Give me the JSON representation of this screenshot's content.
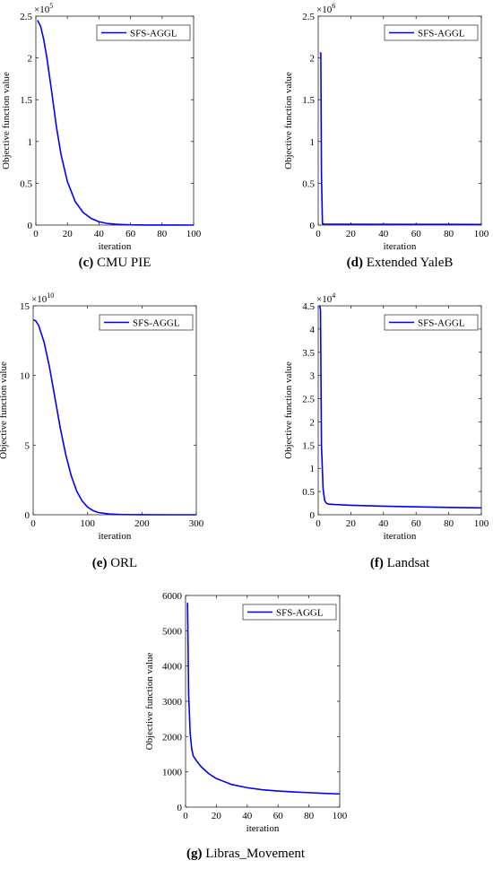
{
  "chart_data": [
    {
      "type": "line",
      "subplot_label": "(c)",
      "caption": "CMU PIE",
      "ylabel": "Objective function value",
      "xlabel": "iteration",
      "xlim": [
        0,
        100
      ],
      "ylim": [
        0,
        250000
      ],
      "xticks": [
        "0",
        "20",
        "40",
        "60",
        "80",
        "100"
      ],
      "xtick_values": [
        0,
        20,
        40,
        60,
        80,
        100
      ],
      "yticks": [
        "0",
        "0.5",
        "1",
        "1.5",
        "2",
        "2.5"
      ],
      "ytick_values": [
        0,
        50000,
        100000,
        150000,
        200000,
        250000
      ],
      "exponent_label": "×10",
      "exponent_power": "5",
      "legend": "SFS-AGGL",
      "legend_position": "top-right",
      "grid": false,
      "color": "#0000ff",
      "series": [
        {
          "name": "SFS-AGGL",
          "x": [
            1,
            3,
            5,
            7,
            10,
            13,
            16,
            20,
            25,
            30,
            35,
            40,
            45,
            50,
            55,
            60,
            70,
            80,
            90,
            100
          ],
          "y": [
            245000,
            238000,
            222000,
            200000,
            160000,
            118000,
            84000,
            52000,
            28000,
            15000,
            8000,
            4000,
            2000,
            1100,
            600,
            300,
            120,
            60,
            30,
            15
          ]
        }
      ]
    },
    {
      "type": "line",
      "subplot_label": "(d)",
      "caption": "Extended YaleB",
      "ylabel": "Objective function value",
      "xlabel": "iteration",
      "xlim": [
        0,
        100
      ],
      "ylim": [
        0,
        2500000
      ],
      "xticks": [
        "0",
        "20",
        "40",
        "60",
        "80",
        "100"
      ],
      "xtick_values": [
        0,
        20,
        40,
        60,
        80,
        100
      ],
      "yticks": [
        "0",
        "0.5",
        "1",
        "1.5",
        "2",
        "2.5"
      ],
      "ytick_values": [
        0,
        500000,
        1000000,
        1500000,
        2000000,
        2500000
      ],
      "exponent_label": "×10",
      "exponent_power": "6",
      "legend": "SFS-AGGL",
      "legend_position": "top-right",
      "grid": false,
      "color": "#0000ff",
      "series": [
        {
          "name": "SFS-AGGL",
          "x": [
            1,
            1.6,
            2,
            2.6,
            4,
            10,
            50,
            100
          ],
          "y": [
            2060000,
            2060000,
            600000,
            15000,
            12000,
            10000,
            9000,
            8000
          ]
        }
      ]
    },
    {
      "type": "line",
      "subplot_label": "(e)",
      "caption": "ORL",
      "ylabel": "Objective function value",
      "xlabel": "iteration",
      "xlim": [
        0,
        300
      ],
      "ylim": [
        0,
        150000000000
      ],
      "xticks": [
        "0",
        "100",
        "200",
        "300"
      ],
      "xtick_values": [
        0,
        100,
        200,
        300
      ],
      "yticks": [
        "0",
        "5",
        "10",
        "15"
      ],
      "ytick_values": [
        0,
        50000000000,
        100000000000,
        150000000000
      ],
      "exponent_label": "×10",
      "exponent_power": "10",
      "legend": "SFS-AGGL",
      "legend_position": "top-right",
      "grid": false,
      "color": "#0000ff",
      "series": [
        {
          "name": "SFS-AGGL",
          "x": [
            1,
            5,
            10,
            20,
            30,
            40,
            50,
            60,
            70,
            80,
            90,
            100,
            110,
            120,
            140,
            160,
            180,
            200,
            250,
            300
          ],
          "y": [
            140000000000,
            139000000000,
            136000000000,
            124000000000,
            106000000000,
            84000000000,
            62000000000,
            43000000000,
            28000000000,
            17000000000,
            10000000000,
            5500000000,
            3000000000,
            1600000000,
            500000000,
            200000000,
            80000000,
            30000000,
            5000000,
            1000000
          ]
        }
      ]
    },
    {
      "type": "line",
      "subplot_label": "(f)",
      "caption": "Landsat",
      "ylabel": "Objective function value",
      "xlabel": "iteration",
      "xlim": [
        0,
        100
      ],
      "ylim": [
        0,
        45000
      ],
      "xticks": [
        "0",
        "20",
        "40",
        "60",
        "80",
        "100"
      ],
      "xtick_values": [
        0,
        20,
        40,
        60,
        80,
        100
      ],
      "yticks": [
        "0",
        "0.5",
        "1",
        "1.5",
        "2",
        "2.5",
        "3",
        "3.5",
        "4",
        "4.5"
      ],
      "ytick_values": [
        0,
        5000,
        10000,
        15000,
        20000,
        25000,
        30000,
        35000,
        40000,
        45000
      ],
      "exponent_label": "×10",
      "exponent_power": "4",
      "legend": "SFS-AGGL",
      "legend_position": "top-right",
      "grid": false,
      "color": "#0000ff",
      "series": [
        {
          "name": "SFS-AGGL",
          "x": [
            1,
            1.4,
            2,
            3,
            4,
            5,
            6,
            10,
            20,
            40,
            60,
            80,
            100
          ],
          "y": [
            45000,
            44000,
            15000,
            5500,
            3000,
            2500,
            2300,
            2200,
            2050,
            1850,
            1700,
            1580,
            1480
          ]
        }
      ]
    },
    {
      "type": "line",
      "subplot_label": "(g)",
      "caption": "Libras_Movement",
      "ylabel": "Objective function value",
      "xlabel": "iteration",
      "xlim": [
        0,
        100
      ],
      "ylim": [
        0,
        6000
      ],
      "xticks": [
        "0",
        "20",
        "40",
        "60",
        "80",
        "100"
      ],
      "xtick_values": [
        0,
        20,
        40,
        60,
        80,
        100
      ],
      "yticks": [
        "0",
        "1000",
        "2000",
        "3000",
        "4000",
        "5000",
        "6000"
      ],
      "ytick_values": [
        0,
        1000,
        2000,
        3000,
        4000,
        5000,
        6000
      ],
      "legend": "SFS-AGGL",
      "legend_position": "top-right",
      "grid": false,
      "color": "#0000ff",
      "series": [
        {
          "name": "SFS-AGGL",
          "x": [
            1,
            1.3,
            2,
            3,
            4,
            5,
            7,
            10,
            15,
            20,
            30,
            40,
            50,
            60,
            70,
            80,
            90,
            100
          ],
          "y": [
            5780,
            5780,
            3200,
            2100,
            1650,
            1450,
            1320,
            1150,
            950,
            810,
            640,
            550,
            490,
            455,
            430,
            410,
            390,
            375
          ]
        }
      ]
    }
  ]
}
